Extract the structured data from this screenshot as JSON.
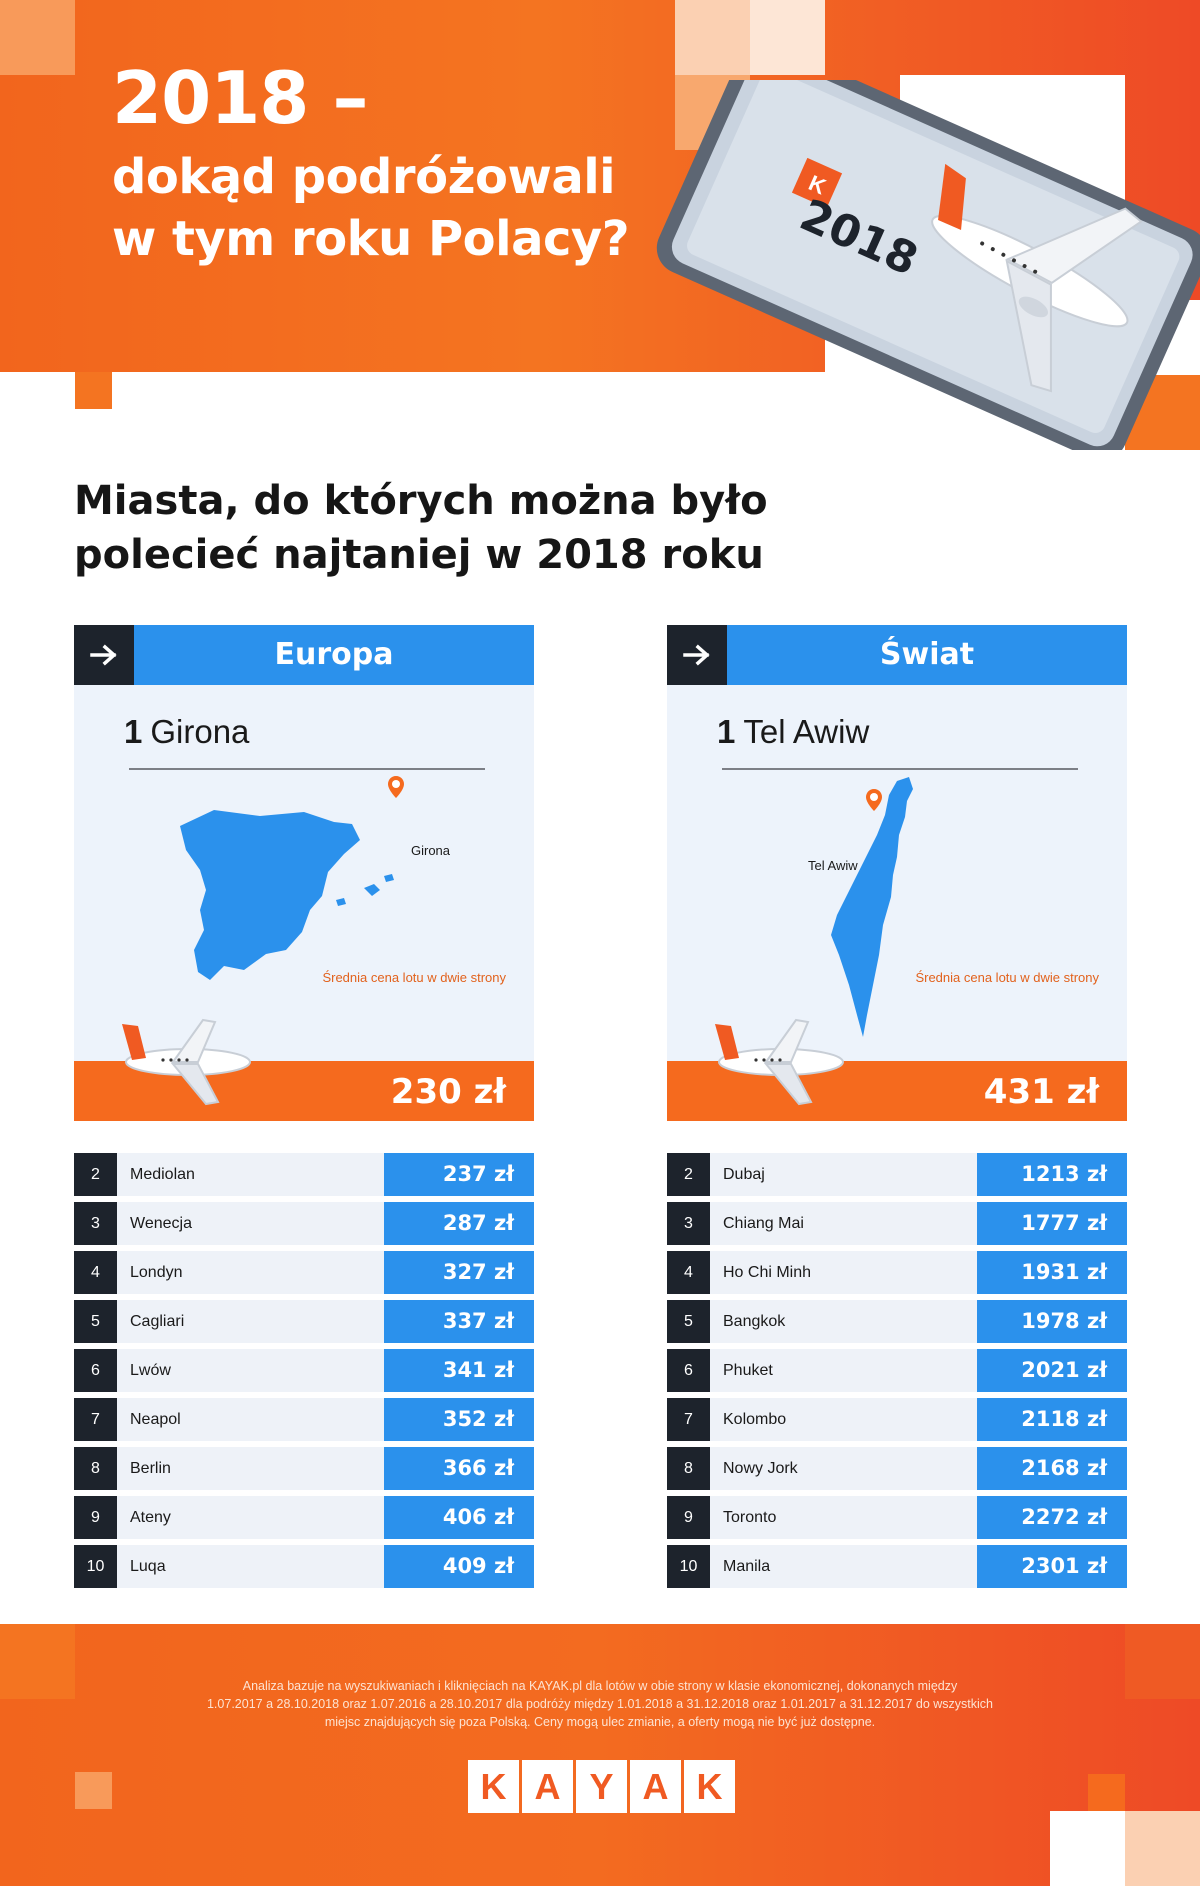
{
  "header": {
    "title_line1": "2018 –",
    "title_line2": "dokąd podróżowali",
    "title_line3": "w tym roku Polacy?",
    "tablet_year": "2018",
    "tablet_logo": "K"
  },
  "section_title_line1": "Miasta, do których można było",
  "section_title_line2": "polecieć najtaniej w 2018 roku",
  "europe": {
    "heading": "Europa",
    "arrow_icon": "arrow-right-icon",
    "top_rank": "1",
    "top_city": "Girona",
    "map_label": "Girona",
    "price_caption": "Średnia cena lotu w dwie strony",
    "price": "230 zł",
    "rows": [
      {
        "rank": "2",
        "city": "Mediolan",
        "price": "237 zł"
      },
      {
        "rank": "3",
        "city": "Wenecja",
        "price": "287 zł"
      },
      {
        "rank": "4",
        "city": "Londyn",
        "price": "327 zł"
      },
      {
        "rank": "5",
        "city": "Cagliari",
        "price": "337 zł"
      },
      {
        "rank": "6",
        "city": "Lwów",
        "price": "341 zł"
      },
      {
        "rank": "7",
        "city": "Neapol",
        "price": "352 zł"
      },
      {
        "rank": "8",
        "city": "Berlin",
        "price": "366 zł"
      },
      {
        "rank": "9",
        "city": "Ateny",
        "price": "406 zł"
      },
      {
        "rank": "10",
        "city": "Luqa",
        "price": "409 zł"
      }
    ]
  },
  "world": {
    "heading": "Świat",
    "arrow_icon": "arrow-right-icon",
    "top_rank": "1",
    "top_city": "Tel Awiw",
    "map_label": "Tel Awiw",
    "price_caption": "Średnia cena lotu w dwie strony",
    "price": "431 zł",
    "rows": [
      {
        "rank": "2",
        "city": "Dubaj",
        "price": "1213 zł"
      },
      {
        "rank": "3",
        "city": "Chiang Mai",
        "price": "1777 zł"
      },
      {
        "rank": "4",
        "city": "Ho Chi Minh",
        "price": "1931 zł"
      },
      {
        "rank": "5",
        "city": "Bangkok",
        "price": "1978 zł"
      },
      {
        "rank": "6",
        "city": "Phuket",
        "price": "2021 zł"
      },
      {
        "rank": "7",
        "city": "Kolombo",
        "price": "2118 zł"
      },
      {
        "rank": "8",
        "city": "Nowy Jork",
        "price": "2168 zł"
      },
      {
        "rank": "9",
        "city": "Toronto",
        "price": "2272 zł"
      },
      {
        "rank": "10",
        "city": "Manila",
        "price": "2301 zł"
      }
    ]
  },
  "footer": {
    "note_line1": "Analiza bazuje na wyszukiwaniach i kliknięciach na KAYAK.pl dla lotów w obie strony w klasie ekonomicznej, dokonanych między",
    "note_line2": "1.07.2017 a 28.10.2018 oraz 1.07.2016 a 28.10.2017 dla podróży między 1.01.2018 a 31.12.2018 oraz 1.01.2017 a 31.12.2017 do wszystkich",
    "note_line3": "miejsc znajdujących się poza Polską. Ceny mogą ulec zmianie, a oferty mogą nie być już dostępne.",
    "logo_letters": [
      "K",
      "A",
      "Y",
      "A",
      "K"
    ]
  },
  "colors": {
    "brand_orange": "#f56a1e",
    "accent_blue": "#2b91ec",
    "dark": "#1d232c",
    "panel_bg": "#edf3fb"
  }
}
